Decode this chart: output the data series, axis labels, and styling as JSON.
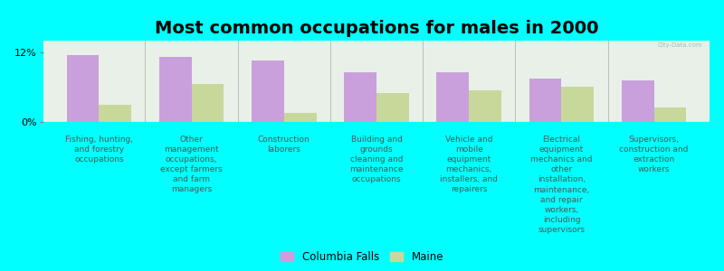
{
  "title": "Most common occupations for males in 2000",
  "categories": [
    "Fishing, hunting,\nand forestry\noccupations",
    "Other\nmanagement\noccupations,\nexcept farmers\nand farm\nmanagers",
    "Construction\nlaborers",
    "Building and\ngrounds\ncleaning and\nmaintenance\noccupations",
    "Vehicle and\nmobile\nequipment\nmechanics,\ninstallers, and\nrepairers",
    "Electrical\nequipment\nmechanics and\nother\ninstallation,\nmaintenance,\nand repair\nworkers,\nincluding\nsupervisors",
    "Supervisors,\nconstruction and\nextraction\nworkers"
  ],
  "columbia_falls": [
    11.5,
    11.2,
    10.5,
    8.5,
    8.5,
    7.5,
    7.2
  ],
  "maine": [
    3.0,
    6.5,
    1.5,
    5.0,
    5.5,
    6.0,
    2.5
  ],
  "columbia_falls_color": "#c9a0dc",
  "maine_color": "#c8d89a",
  "background_color": "#00ffff",
  "plot_bg_color": "#e8f0e8",
  "ylim": [
    0,
    14
  ],
  "ytick_labels": [
    "0%",
    "12%"
  ],
  "ytick_vals": [
    0,
    12
  ],
  "bar_width": 0.35,
  "title_fontsize": 14,
  "label_fontsize": 6.5,
  "legend_labels": [
    "Columbia Falls",
    "Maine"
  ],
  "watermark": "City-Data.com"
}
